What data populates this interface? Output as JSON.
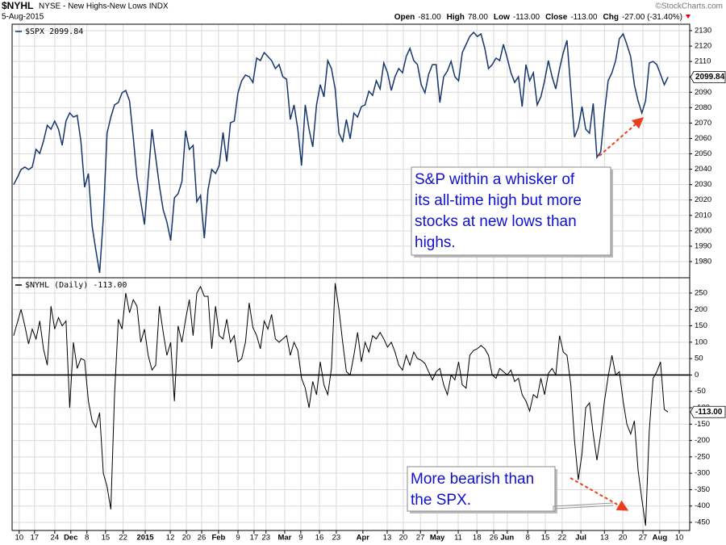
{
  "header": {
    "symbol": "$NYHL",
    "description": "NYSE - New Highs-New Lows INDX",
    "date": "5-Aug-2015",
    "source": "©StockCharts.com",
    "quote": [
      [
        "Open",
        "-81.00"
      ],
      [
        "High",
        "78.00"
      ],
      [
        "Low",
        "-113.00"
      ],
      [
        "Close",
        "-113.00"
      ],
      [
        "Chg",
        "-27.00 (-31.40%)"
      ]
    ]
  },
  "chart_data": [
    {
      "type": "line",
      "ylim": [
        1969.5,
        2134.2
      ],
      "yticks": [
        1980,
        1990,
        2000,
        2010,
        2020,
        2030,
        2040,
        2050,
        2060,
        2070,
        2080,
        2090,
        2100,
        2110,
        2120,
        2130
      ],
      "grid": true,
      "series": [
        {
          "name": "$SPX 2099.84",
          "color": "#17366b",
          "value_label": "2099.84",
          "values": [
            2030,
            2034.6,
            2039.8,
            2041.4,
            2039.8,
            2041.4,
            2052.9,
            2050.3,
            2058.2,
            2068.6,
            2066,
            2071.3,
            2066,
            2055.5,
            2071.3,
            2076.6,
            2073.9,
            2075,
            2058.2,
            2028.3,
            2037.2,
            2003.1,
            1987.4,
            1972.7,
            2008.3,
            2063.4,
            2073.9,
            2081.8,
            2083.3,
            2089.6,
            2091.2,
            2084.4,
            2060.8,
            2034.6,
            2018.9,
            2004.1,
            2034.6,
            2066,
            2047.7,
            2029.3,
            2013.6,
            2005.7,
            1993.7,
            2021.4,
            2024.1,
            2031.9,
            2065,
            2052.9,
            2055.5,
            2018.9,
            2023,
            1995.2,
            2026.7,
            2039.8,
            2037.2,
            2042.4,
            2063.9,
            2045,
            2070.2,
            2071.3,
            2089.6,
            2097.5,
            2101.2,
            2100.1,
            2096.4,
            2112.2,
            2110.6,
            2115.8,
            2113.2,
            2110.6,
            2105.4,
            2108,
            2100.1,
            2098.5,
            2072.3,
            2081.8,
            2066,
            2042.4,
            2081.8,
            2066,
            2054.5,
            2081.8,
            2094.9,
            2087,
            2110.6,
            2105.4,
            2092.2,
            2063.4,
            2058.2,
            2072.3,
            2059.7,
            2076.5,
            2073.9,
            2080.7,
            2081.8,
            2090.7,
            2088,
            2097.5,
            2092.2,
            2109,
            2102.7,
            2091.2,
            2100.1,
            2105.4,
            2102.7,
            2113.2,
            2118.5,
            2110.6,
            2108,
            2094.9,
            2089.6,
            2101.7,
            2108,
            2108,
            2083.3,
            2100.1,
            2103.8,
            2110.1,
            2100.1,
            2097.5,
            2115.8,
            2121.1,
            2126.3,
            2128.9,
            2126.3,
            2127.9,
            2118.5,
            2105.4,
            2108,
            2112.2,
            2110.6,
            2121.1,
            2112.2,
            2102.7,
            2096.4,
            2100.1,
            2080.7,
            2108,
            2097.5,
            2102.7,
            2081.8,
            2087,
            2097.5,
            2110.6,
            2100.1,
            2092.2,
            2105.4,
            2115.8,
            2123.7,
            2092.2,
            2060.8,
            2067.1,
            2080.7,
            2066,
            2063.4,
            2082.8,
            2047.7,
            2051.3,
            2076.5,
            2097.5,
            2102.7,
            2110.6,
            2124.8,
            2127.9,
            2121.1,
            2113.2,
            2094.9,
            2084.4,
            2076.5,
            2084.4,
            2109,
            2110,
            2108,
            2101.7,
            2094.9,
            2099.84
          ]
        }
      ],
      "annotation": [
        "S&P within a whisker of",
        "its all-time high but more",
        "stocks at new lows than",
        "highs."
      ]
    },
    {
      "type": "line",
      "ylim": [
        -474.6,
        296.8
      ],
      "yticks": [
        -450,
        -400,
        -350,
        -300,
        -250,
        -200,
        -150,
        -100,
        -50,
        0,
        50,
        100,
        150,
        200,
        250
      ],
      "grid": true,
      "hline": 0,
      "xlim": [
        -0.4,
        180.8
      ],
      "xticks": [
        {
          "value": 1.5,
          "label": "10"
        },
        {
          "value": 5.6,
          "label": "17"
        },
        {
          "value": 11,
          "label": "24"
        },
        {
          "value": 15.3,
          "label": "Dec"
        },
        {
          "value": 19.6,
          "label": "8"
        },
        {
          "value": 24.6,
          "label": "15"
        },
        {
          "value": 29.3,
          "label": "22"
        },
        {
          "value": 35.2,
          "label": "2015"
        },
        {
          "value": 41.9,
          "label": "12"
        },
        {
          "value": 46.2,
          "label": "20"
        },
        {
          "value": 50.3,
          "label": "26"
        },
        {
          "value": 54.8,
          "label": "Feb"
        },
        {
          "value": 60,
          "label": "9"
        },
        {
          "value": 64.3,
          "label": "17"
        },
        {
          "value": 67.5,
          "label": "23"
        },
        {
          "value": 72.5,
          "label": "Mar"
        },
        {
          "value": 76.8,
          "label": "9"
        },
        {
          "value": 81.8,
          "label": "16"
        },
        {
          "value": 86.3,
          "label": "23"
        },
        {
          "value": 93.4,
          "label": "Apr"
        },
        {
          "value": 99.9,
          "label": "13"
        },
        {
          "value": 104.2,
          "label": "20"
        },
        {
          "value": 108.8,
          "label": "27"
        },
        {
          "value": 113.3,
          "label": "May"
        },
        {
          "value": 118.9,
          "label": "11"
        },
        {
          "value": 123.9,
          "label": "18"
        },
        {
          "value": 128.4,
          "label": "26"
        },
        {
          "value": 132,
          "label": "Jun"
        },
        {
          "value": 137.5,
          "label": "8"
        },
        {
          "value": 142.2,
          "label": "15"
        },
        {
          "value": 146.7,
          "label": "22"
        },
        {
          "value": 151.7,
          "label": "Jul"
        },
        {
          "value": 158,
          "label": "13"
        },
        {
          "value": 162.9,
          "label": "20"
        },
        {
          "value": 168.3,
          "label": "27"
        },
        {
          "value": 172.8,
          "label": "Aug"
        },
        {
          "value": 178,
          "label": "10"
        }
      ],
      "series": [
        {
          "name": "$NYHL (Daily) -113.00",
          "color": "#000000",
          "value_label": "-113.00",
          "values": [
            120,
            160,
            200,
            150,
            95,
            140,
            110,
            165,
            80,
            30,
            210,
            140,
            175,
            150,
            165,
            -100,
            100,
            20,
            50,
            45,
            -80,
            -140,
            -160,
            -115,
            -300,
            -340,
            -410,
            -60,
            170,
            140,
            250,
            190,
            230,
            210,
            100,
            140,
            60,
            15,
            30,
            210,
            130,
            60,
            100,
            -80,
            150,
            100,
            170,
            230,
            120,
            250,
            270,
            240,
            240,
            80,
            210,
            120,
            110,
            170,
            100,
            120,
            40,
            50,
            100,
            220,
            145,
            120,
            80,
            165,
            140,
            185,
            110,
            100,
            110,
            120,
            60,
            100,
            75,
            -10,
            -40,
            -100,
            -20,
            -60,
            40,
            -30,
            -60,
            20,
            280,
            200,
            100,
            10,
            0,
            60,
            130,
            40,
            100,
            70,
            120,
            110,
            130,
            110,
            85,
            100,
            70,
            30,
            15,
            60,
            30,
            70,
            50,
            45,
            35,
            10,
            -15,
            10,
            20,
            -30,
            -60,
            0,
            -15,
            40,
            -30,
            -40,
            60,
            75,
            80,
            90,
            80,
            60,
            0,
            -10,
            20,
            10,
            0,
            15,
            -20,
            -10,
            -60,
            -80,
            -110,
            -60,
            -70,
            -10,
            -60,
            5,
            20,
            0,
            120,
            70,
            60,
            -30,
            -200,
            -320,
            -240,
            -100,
            -85,
            -180,
            -260,
            -180,
            -80,
            -5,
            60,
            0,
            10,
            -80,
            -150,
            -180,
            -140,
            -290,
            -380,
            -460,
            -170,
            -10,
            10,
            40,
            -105,
            -113
          ]
        }
      ],
      "annotation": [
        "More bearish than",
        "the SPX."
      ]
    }
  ]
}
